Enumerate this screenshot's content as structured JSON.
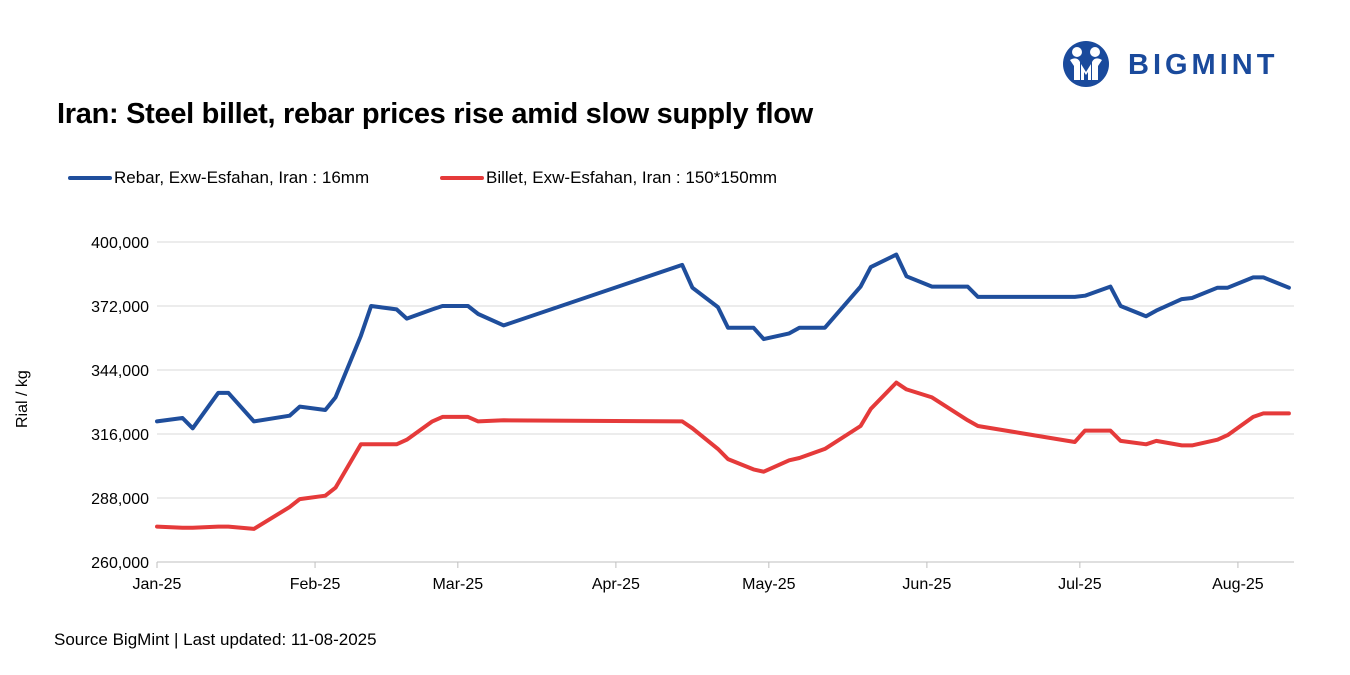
{
  "title": "Iran: Steel billet, rebar prices rise amid slow supply flow",
  "logo": {
    "text": "BIGMINT"
  },
  "source": "Source BigMint | Last updated: 11-08-2025",
  "colors": {
    "rebar": "#1f4e9c",
    "billet": "#e53a3a",
    "grid": "#d9d9d9",
    "brand": "#1a4a9c"
  },
  "chart_data": {
    "type": "line",
    "ylabel": "Rial / kg",
    "ylim": [
      260000,
      400000
    ],
    "yticks": [
      260000,
      288000,
      316000,
      344000,
      372000,
      400000
    ],
    "ytick_labels": [
      "260,000",
      "288,000",
      "316,000",
      "344,000",
      "372,000",
      "400,000"
    ],
    "xlim": [
      "2025-01-01",
      "2025-08-12"
    ],
    "xticks": [
      "2025-01-01",
      "2025-02-01",
      "2025-03-01",
      "2025-04-01",
      "2025-05-01",
      "2025-06-01",
      "2025-07-01",
      "2025-08-01"
    ],
    "xtick_labels": [
      "Jan-25",
      "Feb-25",
      "Mar-25",
      "Apr-25",
      "May-25",
      "Jun-25",
      "Jul-25",
      "Aug-25"
    ],
    "grid": true,
    "legend_position": "top",
    "series": [
      {
        "name": "Rebar, Exw-Esfahan, Iran : 16mm",
        "x": [
          "2025-01-01",
          "2025-01-06",
          "2025-01-08",
          "2025-01-13",
          "2025-01-15",
          "2025-01-20",
          "2025-01-27",
          "2025-01-29",
          "2025-02-03",
          "2025-02-05",
          "2025-02-10",
          "2025-02-12",
          "2025-02-17",
          "2025-02-19",
          "2025-02-24",
          "2025-02-26",
          "2025-03-03",
          "2025-03-05",
          "2025-03-10",
          "2025-04-14",
          "2025-04-16",
          "2025-04-21",
          "2025-04-23",
          "2025-04-28",
          "2025-04-30",
          "2025-05-05",
          "2025-05-07",
          "2025-05-12",
          "2025-05-19",
          "2025-05-21",
          "2025-05-26",
          "2025-05-28",
          "2025-06-02",
          "2025-06-09",
          "2025-06-11",
          "2025-06-30",
          "2025-07-02",
          "2025-07-07",
          "2025-07-09",
          "2025-07-14",
          "2025-07-16",
          "2025-07-21",
          "2025-07-23",
          "2025-07-28",
          "2025-07-30",
          "2025-08-04",
          "2025-08-06",
          "2025-08-11"
        ],
        "y": [
          321500,
          323000,
          318500,
          334000,
          334000,
          321500,
          324000,
          328000,
          326500,
          332000,
          359000,
          372000,
          370500,
          366500,
          370500,
          372000,
          372000,
          368500,
          363500,
          390000,
          380000,
          371500,
          362500,
          362500,
          357500,
          360000,
          362500,
          362500,
          380500,
          389000,
          394500,
          385000,
          380500,
          380500,
          376000,
          376000,
          376500,
          380500,
          372000,
          367500,
          370000,
          375000,
          375500,
          380000,
          380000,
          384500,
          384500,
          380000
        ]
      },
      {
        "name": "Billet, Exw-Esfahan, Iran : 150*150mm",
        "x": [
          "2025-01-01",
          "2025-01-06",
          "2025-01-08",
          "2025-01-13",
          "2025-01-15",
          "2025-01-20",
          "2025-01-27",
          "2025-01-29",
          "2025-02-03",
          "2025-02-05",
          "2025-02-10",
          "2025-02-12",
          "2025-02-17",
          "2025-02-19",
          "2025-02-24",
          "2025-02-26",
          "2025-03-03",
          "2025-03-05",
          "2025-03-10",
          "2025-04-14",
          "2025-04-16",
          "2025-04-21",
          "2025-04-23",
          "2025-04-28",
          "2025-04-30",
          "2025-05-05",
          "2025-05-07",
          "2025-05-12",
          "2025-05-19",
          "2025-05-21",
          "2025-05-26",
          "2025-05-28",
          "2025-06-02",
          "2025-06-09",
          "2025-06-11",
          "2025-06-30",
          "2025-07-02",
          "2025-07-07",
          "2025-07-09",
          "2025-07-14",
          "2025-07-16",
          "2025-07-21",
          "2025-07-23",
          "2025-07-28",
          "2025-07-30",
          "2025-08-04",
          "2025-08-06",
          "2025-08-11"
        ],
        "y": [
          275500,
          275000,
          275000,
          275500,
          275500,
          274500,
          284000,
          287500,
          289000,
          292500,
          311500,
          311500,
          311500,
          313500,
          321500,
          323500,
          323500,
          321500,
          322000,
          321500,
          318500,
          309500,
          305000,
          300500,
          299500,
          304500,
          305500,
          309500,
          319500,
          327000,
          338500,
          335500,
          332000,
          322000,
          319500,
          312500,
          317500,
          317500,
          313000,
          311500,
          313000,
          311000,
          311000,
          313500,
          315500,
          323500,
          325000,
          325000
        ]
      }
    ]
  }
}
